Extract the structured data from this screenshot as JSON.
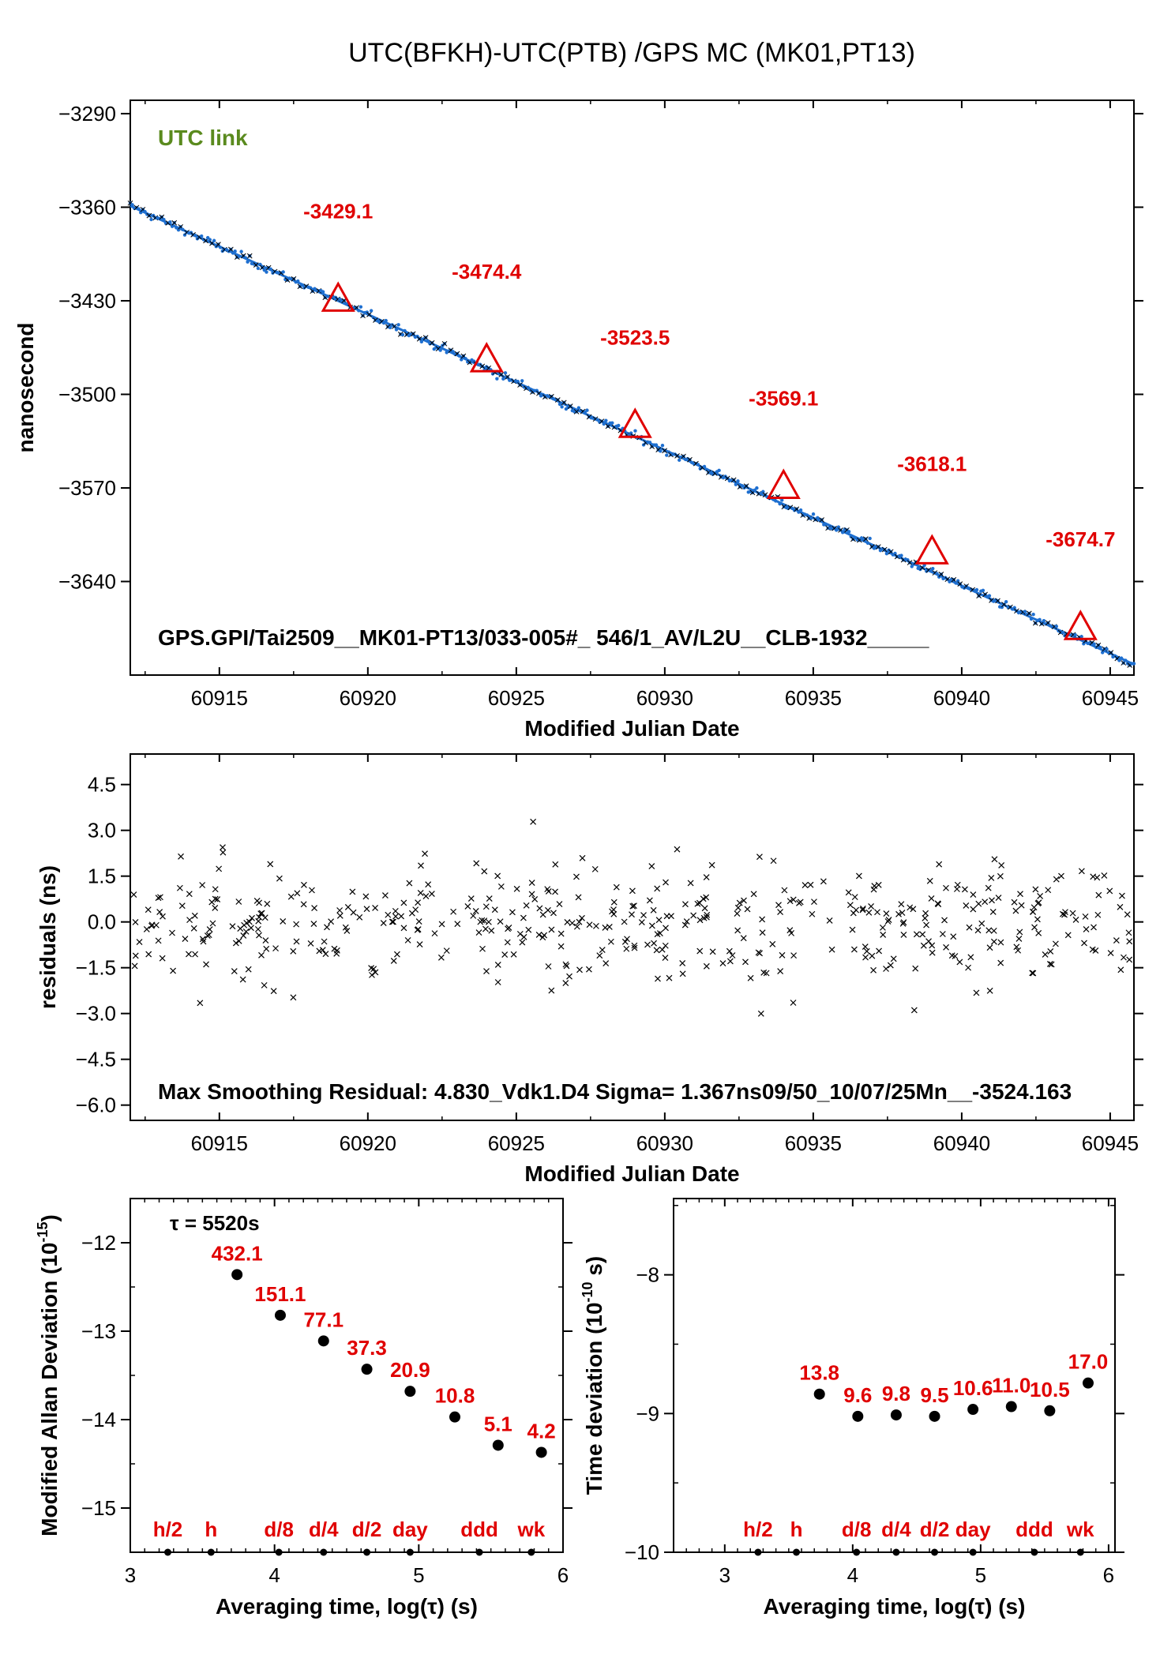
{
  "title": "UTC(BFKH)-UTC(PTB)  /GPS  MC  (MK01,PT13)",
  "colors": {
    "red": "#e00000",
    "green": "#5a8a1e",
    "blue": "#1e6fd0",
    "black": "#000000"
  },
  "chart_data": [
    {
      "type": "scatter",
      "id": "main",
      "xlabel": "Modified Julian Date",
      "ylabel": "nanosecond",
      "xlim": [
        60912,
        60945.8
      ],
      "ylim": [
        -3710,
        -3280
      ],
      "xticks": [
        60915,
        60920,
        60925,
        60930,
        60935,
        60940,
        60945
      ],
      "yticks": [
        -3290,
        -3360,
        -3430,
        -3500,
        -3570,
        -3640
      ],
      "legend_label": "UTC link",
      "footer": "GPS.GPI/Tai2509__MK01-PT13/033-005#_  546/1_AV/L2U__CLB-1932_____",
      "trend": {
        "x": [
          60912,
          60945.8
        ],
        "y": [
          -3359,
          -3702
        ]
      },
      "markers": [
        {
          "x": 60919,
          "y": -3429.1,
          "label": "-3429.1"
        },
        {
          "x": 60924,
          "y": -3474.4,
          "label": "-3474.4"
        },
        {
          "x": 60929,
          "y": -3523.5,
          "label": "-3523.5"
        },
        {
          "x": 60934,
          "y": -3569.1,
          "label": "-3569.1"
        },
        {
          "x": 60939,
          "y": -3618.1,
          "label": "-3618.1"
        },
        {
          "x": 60944,
          "y": -3674.7,
          "label": "-3674.7"
        }
      ]
    },
    {
      "type": "scatter",
      "id": "residuals",
      "xlabel": "Modified Julian Date",
      "ylabel": "residuals (ns)",
      "xlim": [
        60912,
        60945.8
      ],
      "ylim": [
        -6.5,
        5.5
      ],
      "xticks": [
        60915,
        60920,
        60925,
        60930,
        60935,
        60940,
        60945
      ],
      "yticks": [
        "4.5",
        "3.0",
        "1.5",
        "0.0",
        "−1.5",
        "−3.0",
        "−4.5",
        "−6.0"
      ],
      "ytick_values": [
        4.5,
        3.0,
        1.5,
        0.0,
        -1.5,
        -3.0,
        -4.5,
        -6.0
      ],
      "footer": "Max Smoothing Residual: 4.830_Vdk1.D4  Sigma= 1.367ns09/50_10/07/25Mn__-3524.163",
      "sigma": 1.367,
      "max_residual": 4.83
    },
    {
      "type": "scatter",
      "id": "mdev",
      "xlabel": "Averaging time, log(τ) (s)",
      "ylabel": "Modified Allan Deviation (10^-15)",
      "ylabel_main": "Modified Allan Deviation (10",
      "ylabel_exp": "-15",
      "ylabel_end": ")",
      "xlim": [
        3,
        6
      ],
      "ylim": [
        -15.5,
        -11.5
      ],
      "xticks": [
        3,
        4,
        5,
        6
      ],
      "yticks": [
        -12,
        -13,
        -14,
        -15
      ],
      "tau_note": "τ = 5520s",
      "points": [
        {
          "x": 3.74,
          "y": -12.36,
          "label": "432.1"
        },
        {
          "x": 4.04,
          "y": -12.82,
          "label": "151.1"
        },
        {
          "x": 4.34,
          "y": -13.11,
          "label": "77.1"
        },
        {
          "x": 4.64,
          "y": -13.43,
          "label": "37.3"
        },
        {
          "x": 4.94,
          "y": -13.68,
          "label": "20.9"
        },
        {
          "x": 5.25,
          "y": -13.97,
          "label": "10.8"
        },
        {
          "x": 5.55,
          "y": -14.29,
          "label": "5.1"
        },
        {
          "x": 5.85,
          "y": -14.37,
          "label": "4.2"
        }
      ],
      "time_markers": [
        {
          "x": 3.26,
          "label": "h/2"
        },
        {
          "x": 3.56,
          "label": "h"
        },
        {
          "x": 4.03,
          "label": "d/8"
        },
        {
          "x": 4.34,
          "label": "d/4"
        },
        {
          "x": 4.64,
          "label": "d/2"
        },
        {
          "x": 4.94,
          "label": "day"
        },
        {
          "x": 5.42,
          "label": "ddd"
        },
        {
          "x": 5.78,
          "label": "wk"
        }
      ]
    },
    {
      "type": "scatter",
      "id": "tdev",
      "xlabel": "Averaging time, log(τ) (s)",
      "ylabel": "Time deviation (10^-10 s)",
      "ylabel_main": "Time deviation (10",
      "ylabel_exp": "-10",
      "ylabel_end": " s)",
      "xlim": [
        2.6,
        6.05
      ],
      "ylim": [
        -10,
        -7.45
      ],
      "xticks": [
        3,
        4,
        5,
        6
      ],
      "yticks": [
        -8,
        -9,
        -10
      ],
      "points": [
        {
          "x": 3.74,
          "y": -8.86,
          "label": "13.8"
        },
        {
          "x": 4.04,
          "y": -9.02,
          "label": "9.6"
        },
        {
          "x": 4.34,
          "y": -9.01,
          "label": "9.8"
        },
        {
          "x": 4.64,
          "y": -9.02,
          "label": "9.5"
        },
        {
          "x": 4.94,
          "y": -8.97,
          "label": "10.6"
        },
        {
          "x": 5.24,
          "y": -8.95,
          "label": "11.0"
        },
        {
          "x": 5.54,
          "y": -8.98,
          "label": "10.5"
        },
        {
          "x": 5.84,
          "y": -8.78,
          "label": "17.0"
        }
      ],
      "time_markers": [
        {
          "x": 3.26,
          "label": "h/2"
        },
        {
          "x": 3.56,
          "label": "h"
        },
        {
          "x": 4.03,
          "label": "d/8"
        },
        {
          "x": 4.34,
          "label": "d/4"
        },
        {
          "x": 4.64,
          "label": "d/2"
        },
        {
          "x": 4.94,
          "label": "day"
        },
        {
          "x": 5.42,
          "label": "ddd"
        },
        {
          "x": 5.78,
          "label": "wk"
        }
      ]
    }
  ]
}
